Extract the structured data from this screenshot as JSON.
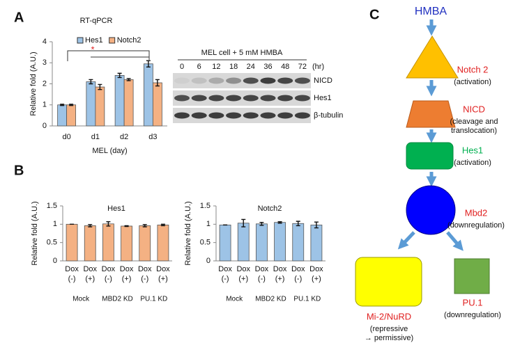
{
  "panels": [
    "A",
    "B",
    "C"
  ],
  "chart_data": [
    {
      "type": "bar",
      "title": "RT-qPCR",
      "xlabel": "MEL (day)",
      "ylabel": "Relative fold (A.U.)",
      "categories": [
        "d0",
        "d1",
        "d2",
        "d3"
      ],
      "series": [
        {
          "name": "Hes1",
          "color": "#9dc3e6",
          "values": [
            1,
            2.1,
            2.4,
            2.95
          ],
          "errors": [
            0.03,
            0.1,
            0.1,
            0.15
          ]
        },
        {
          "name": "Notch2",
          "color": "#f4b183",
          "values": [
            1,
            1.85,
            2.2,
            2.05
          ],
          "errors": [
            0.03,
            0.12,
            0.05,
            0.15
          ]
        }
      ],
      "ylim": [
        0,
        4
      ],
      "yticks": [
        0,
        1,
        2,
        3,
        4
      ],
      "legend": "top",
      "annotation": "*"
    },
    {
      "type": "bar",
      "title": "Hes1",
      "ylabel": "Relative  fold (A.U.)",
      "categories": [
        "Dox (-)",
        "Dox (+)",
        "Dox (-)",
        "Dox (+)",
        "Dox (-)",
        "Dox (+)"
      ],
      "groups": [
        "Mock",
        "MBD2 KD",
        "PU.1 KD"
      ],
      "values": [
        1,
        0.96,
        1.01,
        0.95,
        0.96,
        0.98
      ],
      "errors": [
        0,
        0.03,
        0.06,
        0.01,
        0.03,
        0.02
      ],
      "color": "#f4b183",
      "ylim": [
        0,
        1.5
      ],
      "yticks": [
        0,
        0.5,
        1,
        1.5
      ]
    },
    {
      "type": "bar",
      "title": "Notch2",
      "ylabel": "Relative  fold (A.U.)",
      "categories": [
        "Dox (-)",
        "Dox (+)",
        "Dox (-)",
        "Dox (+)",
        "Dox (-)",
        "Dox (+)"
      ],
      "groups": [
        "Mock",
        "MBD2 KD",
        "PU.1 KD"
      ],
      "values": [
        0.98,
        1.03,
        1.01,
        1.05,
        1.02,
        0.98
      ],
      "errors": [
        0,
        0.1,
        0.04,
        0.02,
        0.06,
        0.08
      ],
      "color": "#9dc3e6",
      "ylim": [
        0,
        1.5
      ],
      "yticks": [
        0,
        0.5,
        1,
        1.5
      ]
    }
  ],
  "blot": {
    "title": "MEL cell + 5 mM HMBA",
    "unit": "(hr)",
    "lanes": [
      "0",
      "6",
      "12",
      "18",
      "24",
      "36",
      "48",
      "72"
    ],
    "rows": [
      "NICD",
      "Hes1",
      "β-tubulin"
    ]
  },
  "diagram": {
    "nodes": [
      {
        "label": "HMBA"
      },
      {
        "label": "Notch 2",
        "note": [
          "(activation)"
        ]
      },
      {
        "label": "NICD",
        "note": [
          "(cleavage  and",
          "translocation)"
        ]
      },
      {
        "label": "Hes1",
        "note": [
          "(activation)"
        ]
      },
      {
        "label": "Mbd2",
        "note": [
          "(downregulation)"
        ]
      },
      {
        "label": "Mi-2/NuRD",
        "note": [
          "(repressive",
          "→ permissive)"
        ]
      },
      {
        "label": "PU.1",
        "note": [
          "(downregulation)"
        ]
      }
    ]
  }
}
